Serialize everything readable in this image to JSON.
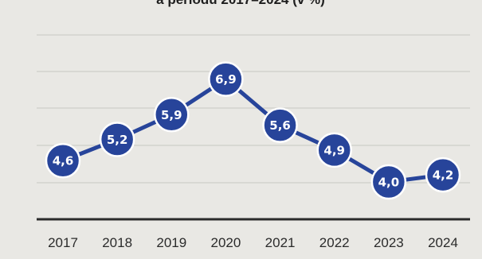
{
  "chart_data": {
    "type": "line",
    "title_partial": "a periodu 2017–2024 (v %)",
    "categories": [
      "2017",
      "2018",
      "2019",
      "2020",
      "2021",
      "2022",
      "2023",
      "2024"
    ],
    "values": [
      4.6,
      5.2,
      5.9,
      6.9,
      5.6,
      4.9,
      4.0,
      4.2
    ],
    "data_labels": [
      "4,6",
      "5,2",
      "5,9",
      "6,9",
      "5,6",
      "4,9",
      "4,0",
      "4,2"
    ],
    "grid": true,
    "legend": "none",
    "colors": {
      "series": "#27449a",
      "background": "#e9e8e4"
    }
  }
}
